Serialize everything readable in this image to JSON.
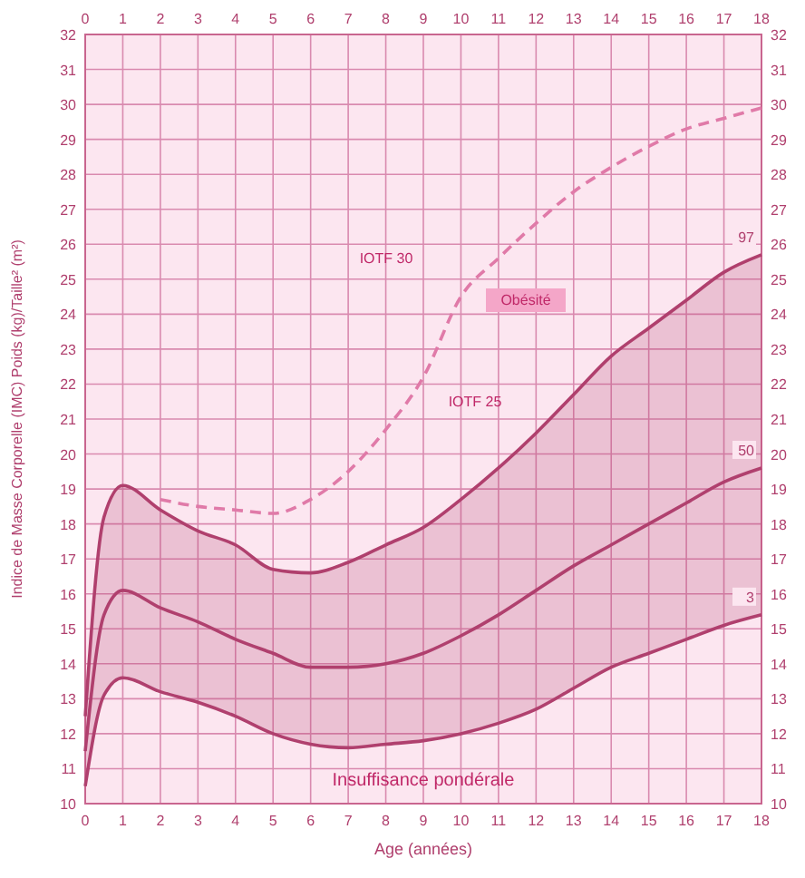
{
  "chart_data": {
    "type": "line",
    "xlabel": "Age (années)",
    "ylabel": "Indice de Masse Corporelle (IMC) Poids (kg)/Taille² (m²)",
    "x": [
      0,
      0.5,
      1,
      2,
      3,
      4,
      5,
      6,
      7,
      8,
      9,
      10,
      11,
      12,
      13,
      14,
      15,
      16,
      17,
      18
    ],
    "series": [
      {
        "color": "#e07aa8",
        "line_style": "dashed",
        "x": [
          2,
          3,
          4,
          5,
          6,
          7,
          8,
          9,
          10,
          11,
          12,
          13,
          14,
          15,
          16,
          17,
          18
        ],
        "values": [
          18.7,
          18.5,
          18.4,
          18.3,
          18.7,
          19.5,
          20.7,
          22.2,
          24.5,
          25.6,
          26.6,
          27.5,
          28.2,
          28.8,
          29.3,
          29.6,
          29.9
        ]
      },
      {
        "name": "97",
        "color": "#b0406e",
        "values": [
          12.5,
          18.2,
          19.1,
          18.4,
          17.8,
          17.4,
          16.7,
          16.6,
          16.9,
          17.4,
          17.9,
          18.7,
          19.6,
          20.6,
          21.7,
          22.8,
          23.6,
          24.4,
          25.2,
          25.7
        ]
      },
      {
        "name": "50",
        "color": "#b0406e",
        "values": [
          11.5,
          15.4,
          16.1,
          15.6,
          15.2,
          14.7,
          14.3,
          13.9,
          13.9,
          14.0,
          14.3,
          14.8,
          15.4,
          16.1,
          16.8,
          17.4,
          18.0,
          18.6,
          19.2,
          19.6
        ],
        "lower": [
          10.5,
          13.1,
          13.6,
          13.2,
          12.9,
          12.5,
          12.0,
          11.7,
          11.6,
          11.7,
          11.8,
          12.0,
          12.3,
          12.7,
          13.3,
          13.9,
          14.3,
          14.7,
          15.1,
          15.4
        ],
        "upper": [
          12.5,
          18.2,
          19.1,
          18.4,
          17.8,
          17.4,
          16.7,
          16.6,
          16.9,
          17.4,
          17.9,
          18.7,
          19.6,
          20.6,
          21.7,
          22.8,
          23.6,
          24.4,
          25.2,
          25.7
        ]
      },
      {
        "name": "3",
        "color": "#b0406e",
        "values": [
          10.5,
          13.1,
          13.6,
          13.2,
          12.9,
          12.5,
          12.0,
          11.7,
          11.6,
          11.7,
          11.8,
          12.0,
          12.3,
          12.7,
          13.3,
          13.9,
          14.3,
          14.7,
          15.1,
          15.4
        ]
      }
    ],
    "xlim": [
      0,
      18
    ],
    "xticks": [
      0,
      1,
      2,
      3,
      4,
      5,
      6,
      7,
      8,
      9,
      10,
      11,
      12,
      13,
      14,
      15,
      16,
      17,
      18
    ],
    "x2lim": [
      0,
      18
    ],
    "x2ticks": [
      0,
      1,
      2,
      3,
      4,
      5,
      6,
      7,
      8,
      9,
      10,
      11,
      12,
      13,
      14,
      15,
      16,
      17,
      18
    ],
    "ylim": [
      10,
      32
    ],
    "yticks": [
      10,
      11,
      12,
      13,
      14,
      15,
      16,
      17,
      18,
      19,
      20,
      21,
      22,
      23,
      24,
      25,
      26,
      27,
      28,
      29,
      30,
      31,
      32
    ],
    "y2lim": [
      10,
      32
    ],
    "y2ticks": [
      10,
      11,
      12,
      13,
      14,
      15,
      16,
      17,
      18,
      19,
      20,
      21,
      22,
      23,
      24,
      25,
      26,
      27,
      28,
      29,
      30,
      31,
      32
    ],
    "grid": true,
    "marker": "none",
    "annotations": [
      "IOTF 30",
      "Obésité",
      "IOTF 25",
      "Insuffisance pondérale"
    ]
  }
}
